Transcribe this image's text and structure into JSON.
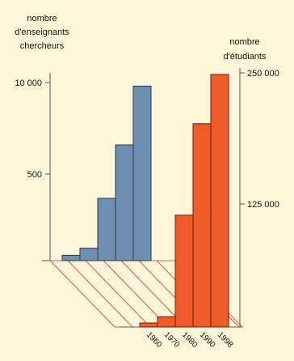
{
  "chart_data": {
    "type": "bar",
    "categories": [
      "1960",
      "1970",
      "1980",
      "1990",
      "1998"
    ],
    "left_axis": {
      "label": [
        "nombre",
        "d'enseignants",
        "chercheurs"
      ],
      "ticks": [
        "500",
        "10 000"
      ]
    },
    "right_axis": {
      "label": [
        "nombre",
        "d'étudiants"
      ],
      "ticks": [
        "125 000",
        "250 000"
      ]
    },
    "series": [
      {
        "name": "",
        "axis": "left",
        "color": "#6f8fb1",
        "values": [
          300,
          700,
          3500,
          6500,
          9800
        ]
      },
      {
        "name": "",
        "axis": "right",
        "color": "#ee5a2a",
        "values": [
          4000,
          10000,
          110000,
          200000,
          255000
        ]
      }
    ],
    "hatch_color": "#e06a50"
  }
}
